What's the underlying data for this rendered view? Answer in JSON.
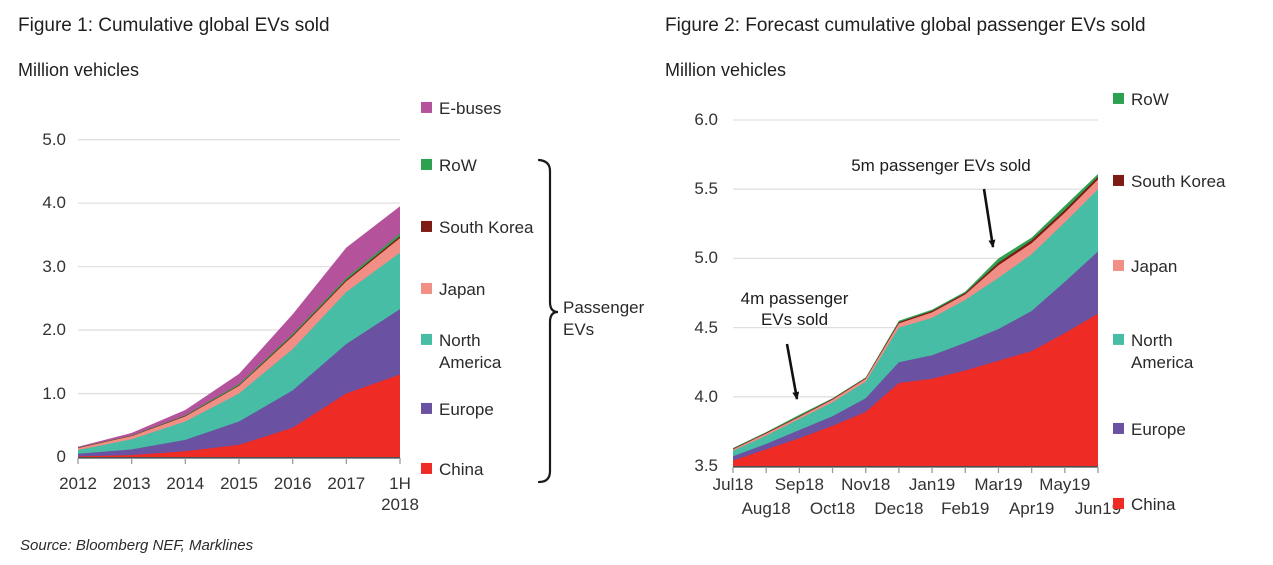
{
  "page": {
    "source_note": "Source: Bloomberg NEF, Marklines",
    "background_color": "#ffffff"
  },
  "chart_data": [
    {
      "id": "figure1",
      "type": "area",
      "stacked": true,
      "title": "Figure 1: Cumulative global EVs sold",
      "unit_label": "Million vehicles",
      "categories": [
        "2012",
        "2013",
        "2014",
        "2015",
        "2016",
        "2017",
        "1H 2018"
      ],
      "ylim": [
        0,
        5.0
      ],
      "ytick_labels": [
        "0",
        "1.0",
        "2.0",
        "3.0",
        "4.0",
        "5.0"
      ],
      "grid": true,
      "legend_position": "right",
      "legend_order_top_to_bottom": [
        "E-buses",
        "RoW",
        "South Korea",
        "Japan",
        "North America",
        "Europe",
        "China"
      ],
      "legend_bracket": {
        "label": "Passenger EVs",
        "spans_from": "RoW",
        "spans_to": "China"
      },
      "series": [
        {
          "name": "China",
          "color": "#ee2b24",
          "values": [
            0.01,
            0.03,
            0.09,
            0.19,
            0.46,
            1.0,
            1.3
          ]
        },
        {
          "name": "Europe",
          "color": "#6b51a1",
          "values": [
            0.04,
            0.09,
            0.18,
            0.37,
            0.59,
            0.78,
            1.03
          ]
        },
        {
          "name": "North America",
          "color": "#47bda5",
          "values": [
            0.06,
            0.16,
            0.29,
            0.44,
            0.65,
            0.82,
            0.89
          ]
        },
        {
          "name": "Japan",
          "color": "#f18e85",
          "values": [
            0.03,
            0.05,
            0.08,
            0.12,
            0.2,
            0.17,
            0.23
          ]
        },
        {
          "name": "South Korea",
          "color": "#7e1b15",
          "values": [
            0.005,
            0.005,
            0.01,
            0.01,
            0.02,
            0.02,
            0.03
          ]
        },
        {
          "name": "RoW",
          "color": "#2ea150",
          "values": [
            0.005,
            0.005,
            0.01,
            0.02,
            0.02,
            0.03,
            0.04
          ]
        },
        {
          "name": "E-buses",
          "color": "#b4539b",
          "values": [
            0.01,
            0.04,
            0.08,
            0.16,
            0.31,
            0.48,
            0.43
          ]
        }
      ]
    },
    {
      "id": "figure2",
      "type": "area",
      "stacked": true,
      "title": "Figure 2: Forecast cumulative global passenger EVs sold",
      "unit_label": "Million vehicles",
      "categories": [
        "Jul18",
        "Aug18",
        "Sep18",
        "Oct18",
        "Nov18",
        "Dec18",
        "Jan19",
        "Feb19",
        "Mar19",
        "Apr19",
        "May19",
        "Jun19"
      ],
      "ylim": [
        3.5,
        6.0
      ],
      "ytick_labels": [
        "3.5",
        "4.0",
        "4.5",
        "5.0",
        "5.5",
        "6.0"
      ],
      "grid": true,
      "baseline_note": "y-axis truncated at 3.5; series values are stacked cumulative tops as drawn",
      "legend_position": "right",
      "legend_order_top_to_bottom": [
        "RoW",
        "South Korea",
        "Japan",
        "North America",
        "Europe",
        "China"
      ],
      "series": [
        {
          "name": "China",
          "color": "#ee2b24",
          "stack_tops": [
            3.54,
            3.62,
            3.7,
            3.79,
            3.89,
            4.1,
            4.13,
            4.19,
            4.26,
            4.33,
            4.46,
            4.6
          ]
        },
        {
          "name": "Europe",
          "color": "#6b51a1",
          "stack_tops": [
            3.57,
            3.66,
            3.76,
            3.86,
            3.99,
            4.25,
            4.3,
            4.39,
            4.49,
            4.62,
            4.83,
            5.05
          ]
        },
        {
          "name": "North America",
          "color": "#47bda5",
          "stack_tops": [
            3.61,
            3.72,
            3.84,
            3.96,
            4.11,
            4.5,
            4.57,
            4.7,
            4.86,
            5.03,
            5.26,
            5.5
          ]
        },
        {
          "name": "Japan",
          "color": "#f18e85",
          "stack_tops": [
            3.62,
            3.735,
            3.855,
            3.98,
            4.13,
            4.53,
            4.61,
            4.74,
            4.95,
            5.11,
            5.33,
            5.57
          ]
        },
        {
          "name": "South Korea",
          "color": "#7e1b15",
          "stack_tops": [
            3.625,
            3.74,
            3.86,
            3.985,
            4.135,
            4.54,
            4.62,
            4.75,
            4.97,
            5.13,
            5.35,
            5.59
          ]
        },
        {
          "name": "RoW",
          "color": "#2ea150",
          "stack_tops": [
            3.63,
            3.745,
            3.87,
            3.99,
            4.14,
            4.55,
            4.63,
            4.76,
            5.0,
            5.15,
            5.38,
            5.61
          ]
        }
      ],
      "annotations": [
        {
          "text": "5m passenger EVs sold",
          "points_to": {
            "category": "Mar19",
            "value": 5.0
          }
        },
        {
          "text": "4m passenger\nEVs sold",
          "points_to": {
            "category": "Sep18",
            "value": 3.95
          }
        }
      ]
    }
  ]
}
